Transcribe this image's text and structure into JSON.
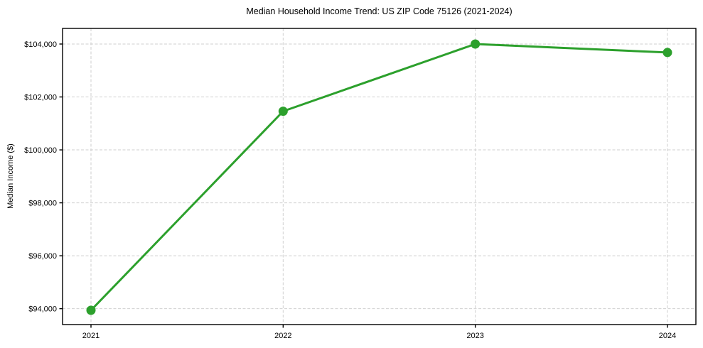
{
  "chart_data": {
    "type": "line",
    "title": "Median Household Income Trend: US ZIP Code 75126 (2021-2024)",
    "xlabel": "",
    "ylabel": "Median Income ($)",
    "categories": [
      "2021",
      "2022",
      "2023",
      "2024"
    ],
    "series": [
      {
        "name": "Median Household Income",
        "values": [
          93940,
          101460,
          104000,
          103680
        ]
      }
    ],
    "yticks": [
      94000,
      96000,
      98000,
      100000,
      102000,
      104000
    ],
    "ytick_labels": [
      "$94,000",
      "$96,000",
      "$98,000",
      "$100,000",
      "$102,000",
      "$104,000"
    ],
    "ylim": [
      93400,
      104590
    ],
    "grid": true,
    "grid_style": "dashed",
    "legend": false,
    "line_color": "#2ca02c",
    "marker": "circle",
    "marker_color": "#2ca02c",
    "grid_color": "#cfcfcf",
    "spine_color": "#000000",
    "background_color": "#ffffff"
  }
}
